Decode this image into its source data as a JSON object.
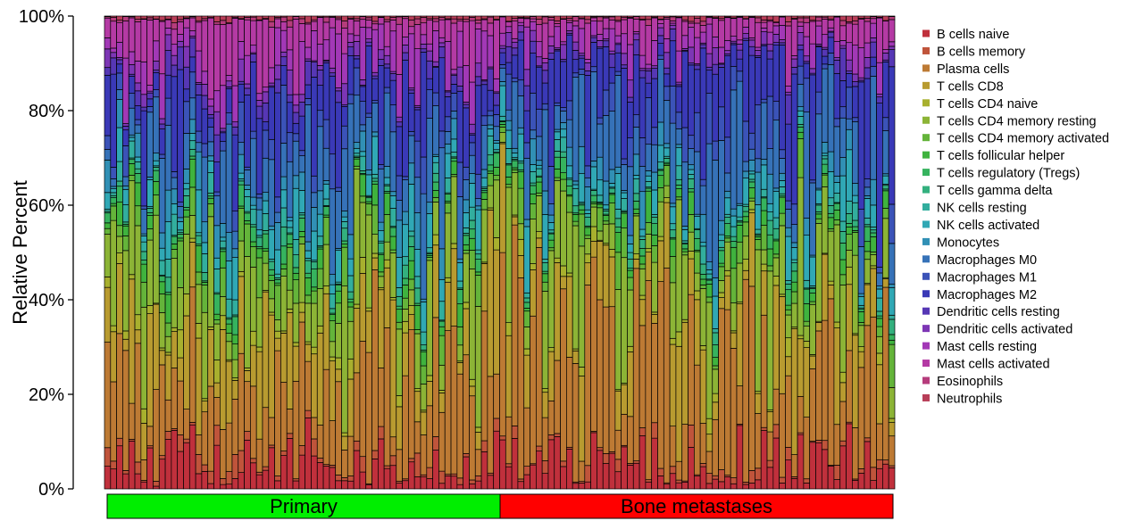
{
  "chart_data": {
    "type": "stacked-bar",
    "title": "",
    "xlabel": "",
    "ylabel": "Relative Percent",
    "ylim": [
      0,
      100
    ],
    "y_ticks": [
      "0%",
      "20%",
      "40%",
      "60%",
      "80%",
      "100%"
    ],
    "stacked": true,
    "normalized_to": 100,
    "legend_position": "right",
    "n_samples": 130,
    "groups": [
      {
        "name": "Primary",
        "count": 65,
        "color": "#00ee00"
      },
      {
        "name": "Bone metastases",
        "count": 65,
        "color": "#ff0000"
      }
    ],
    "series": [
      {
        "name": "B cells naive",
        "color": "#c0303c",
        "mean_percent": 4.5
      },
      {
        "name": "B cells memory",
        "color": "#c0543b",
        "mean_percent": 1.5
      },
      {
        "name": "Plasma cells",
        "color": "#bd7a34",
        "mean_percent": 17
      },
      {
        "name": "T cells CD8",
        "color": "#b89b30",
        "mean_percent": 11
      },
      {
        "name": "T cells CD4 naive",
        "color": "#a8b02e",
        "mean_percent": 1.5
      },
      {
        "name": "T cells CD4 memory resting",
        "color": "#8cb436",
        "mean_percent": 12
      },
      {
        "name": "T cells CD4 memory activated",
        "color": "#64b43a",
        "mean_percent": 3
      },
      {
        "name": "T cells follicular helper",
        "color": "#3fb33e",
        "mean_percent": 2
      },
      {
        "name": "T cells regulatory (Tregs)",
        "color": "#36b35e",
        "mean_percent": 1.5
      },
      {
        "name": "T cells gamma delta",
        "color": "#33b07e",
        "mean_percent": 1
      },
      {
        "name": "NK cells resting",
        "color": "#32ae9e",
        "mean_percent": 1.5
      },
      {
        "name": "NK cells activated",
        "color": "#30a8b5",
        "mean_percent": 4
      },
      {
        "name": "Monocytes",
        "color": "#3190b5",
        "mean_percent": 2.5
      },
      {
        "name": "Macrophages M0",
        "color": "#3672b8",
        "mean_percent": 8
      },
      {
        "name": "Macrophages M1",
        "color": "#3b53b8",
        "mean_percent": 3
      },
      {
        "name": "Macrophages M2",
        "color": "#3a39b7",
        "mean_percent": 9
      },
      {
        "name": "Dendritic cells resting",
        "color": "#5637b5",
        "mean_percent": 1.5
      },
      {
        "name": "Dendritic cells activated",
        "color": "#7d36b5",
        "mean_percent": 1.5
      },
      {
        "name": "Mast cells resting",
        "color": "#a238b6",
        "mean_percent": 5
      },
      {
        "name": "Mast cells activated",
        "color": "#b43aa4",
        "mean_percent": 6
      },
      {
        "name": "Eosinophils",
        "color": "#b63c7c",
        "mean_percent": 0.5
      },
      {
        "name": "Neutrophils",
        "color": "#b83e58",
        "mean_percent": 0.5
      }
    ]
  }
}
